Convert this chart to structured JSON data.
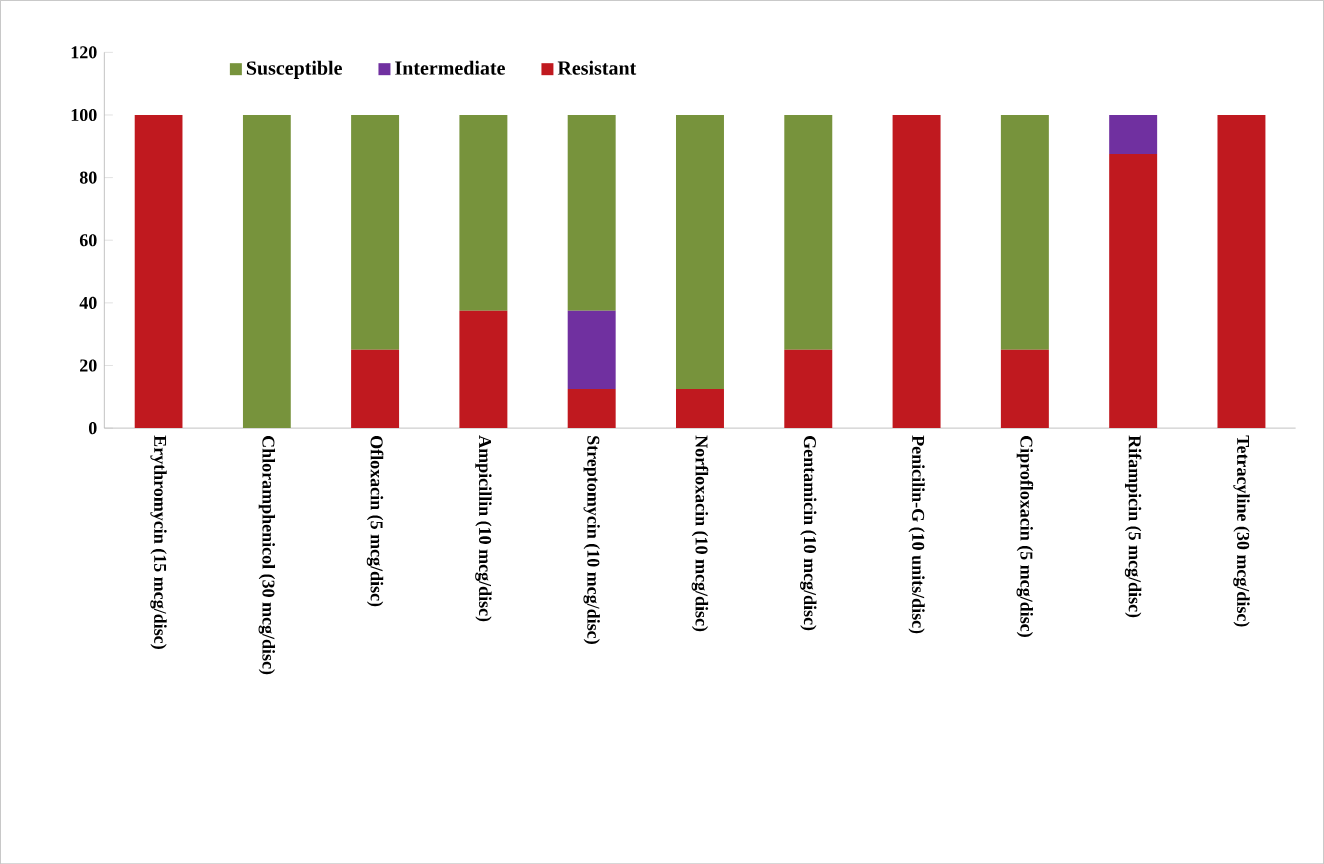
{
  "chart_data": {
    "type": "bar",
    "stacked": true,
    "categories": [
      "Erythromycin (15 mcg/disc)",
      "Chloramphenicol (30 mcg/disc)",
      "Ofloxacin (5 mcg/disc)",
      "Ampicillin (10 mcg/disc)",
      "Streptomycin (10 mcg/disc)",
      "Norfloxacin (10 mcg/disc)",
      "Gentamicin (10 mcg/disc)",
      "Penicilin-G (10 units/disc)",
      "Ciprofloxacin (5 mcg/disc)",
      "Rifampicin (5 mcg/disc)",
      "Tetracyline (30 mcg/disc)"
    ],
    "series": [
      {
        "name": "Resistant",
        "color": "#c0191f",
        "values": [
          100,
          0,
          25,
          37.5,
          12.5,
          12.5,
          25,
          100,
          25,
          87.5,
          100
        ]
      },
      {
        "name": "Intermediate",
        "color": "#7030a0",
        "values": [
          0,
          0,
          0,
          0,
          25,
          0,
          0,
          0,
          0,
          12.5,
          0
        ]
      },
      {
        "name": "Susceptible",
        "color": "#77933c",
        "values": [
          0,
          100,
          75,
          62.5,
          62.5,
          87.5,
          75,
          0,
          75,
          0,
          0
        ]
      }
    ],
    "ylim": [
      0,
      120
    ],
    "yticks": [
      0,
      20,
      40,
      60,
      80,
      100,
      120
    ],
    "grid": false,
    "legend": "top"
  }
}
